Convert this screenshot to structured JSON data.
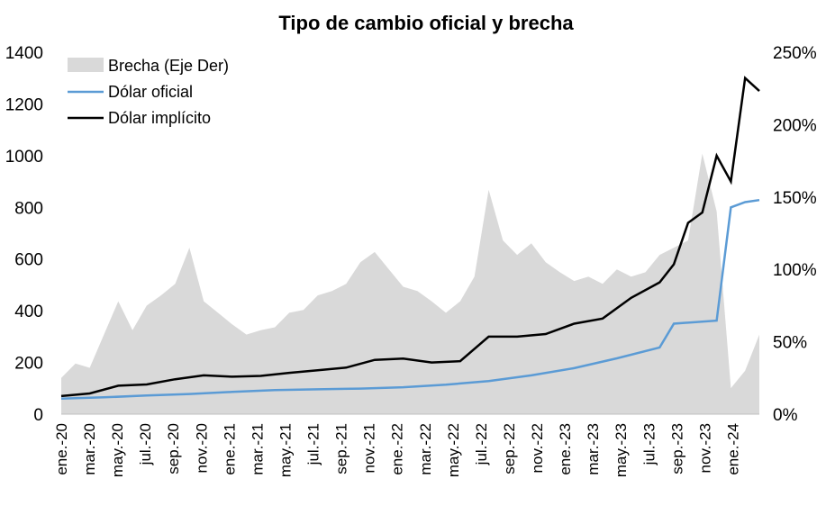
{
  "chart_data": {
    "type": "line",
    "title": "Tipo de cambio oficial y brecha",
    "y_left": {
      "min": 0,
      "max": 1400,
      "ticks": [
        "0",
        "200",
        "400",
        "600",
        "800",
        "1000",
        "1200",
        "1400"
      ]
    },
    "y_right": {
      "min": 0,
      "max": 250,
      "ticks": [
        "0%",
        "50%",
        "100%",
        "150%",
        "200%",
        "250%"
      ]
    },
    "x_labels": [
      "ene.-20",
      "mar.-20",
      "may.-20",
      "jul.-20",
      "sep.-20",
      "nov.-20",
      "ene.-21",
      "mar.-21",
      "may.-21",
      "jul.-21",
      "sep.-21",
      "nov.-21",
      "ene.-22",
      "mar.-22",
      "may.-22",
      "jul.-22",
      "sep.-22",
      "nov.-22",
      "ene.-23",
      "mar.-23",
      "may.-23",
      "jul.-23",
      "sep.-23",
      "nov.-23",
      "ene.-24"
    ],
    "x_start": "2020-01",
    "x_end": "2024-02",
    "legend": [
      "Brecha (Eje Der)",
      "Dólar oficial",
      "Dólar implícito"
    ],
    "colors": {
      "brecha": "#d9d9d9",
      "oficial": "#5b9bd5",
      "implicito": "#000000"
    },
    "series": [
      {
        "name": "Brecha (Eje Der)",
        "axis": "right",
        "kind": "area",
        "points": [
          [
            "2020-01",
            25
          ],
          [
            "2020-02",
            35
          ],
          [
            "2020-03",
            32
          ],
          [
            "2020-04",
            55
          ],
          [
            "2020-05",
            78
          ],
          [
            "2020-06",
            58
          ],
          [
            "2020-07",
            75
          ],
          [
            "2020-08",
            82
          ],
          [
            "2020-09",
            90
          ],
          [
            "2020-10",
            115
          ],
          [
            "2020-11",
            78
          ],
          [
            "2020-12",
            70
          ],
          [
            "2021-01",
            62
          ],
          [
            "2021-02",
            55
          ],
          [
            "2021-03",
            58
          ],
          [
            "2021-04",
            60
          ],
          [
            "2021-05",
            70
          ],
          [
            "2021-06",
            72
          ],
          [
            "2021-07",
            82
          ],
          [
            "2021-08",
            85
          ],
          [
            "2021-09",
            90
          ],
          [
            "2021-10",
            105
          ],
          [
            "2021-11",
            112
          ],
          [
            "2021-12",
            100
          ],
          [
            "2022-01",
            88
          ],
          [
            "2022-02",
            85
          ],
          [
            "2022-03",
            78
          ],
          [
            "2022-04",
            70
          ],
          [
            "2022-05",
            78
          ],
          [
            "2022-06",
            95
          ],
          [
            "2022-07",
            155
          ],
          [
            "2022-08",
            120
          ],
          [
            "2022-09",
            110
          ],
          [
            "2022-10",
            118
          ],
          [
            "2022-11",
            105
          ],
          [
            "2022-12",
            98
          ],
          [
            "2023-01",
            92
          ],
          [
            "2023-02",
            95
          ],
          [
            "2023-03",
            90
          ],
          [
            "2023-04",
            100
          ],
          [
            "2023-05",
            95
          ],
          [
            "2023-06",
            98
          ],
          [
            "2023-07",
            110
          ],
          [
            "2023-08",
            115
          ],
          [
            "2023-09",
            120
          ],
          [
            "2023-10",
            180
          ],
          [
            "2023-11",
            140
          ],
          [
            "2023-12",
            18
          ],
          [
            "2024-01",
            30
          ],
          [
            "2024-02",
            55
          ]
        ]
      },
      {
        "name": "Dólar oficial",
        "axis": "left",
        "kind": "line",
        "points": [
          [
            "2020-01",
            60
          ],
          [
            "2020-04",
            65
          ],
          [
            "2020-07",
            72
          ],
          [
            "2020-10",
            78
          ],
          [
            "2021-01",
            86
          ],
          [
            "2021-04",
            93
          ],
          [
            "2021-07",
            96
          ],
          [
            "2021-10",
            99
          ],
          [
            "2022-01",
            104
          ],
          [
            "2022-04",
            114
          ],
          [
            "2022-07",
            128
          ],
          [
            "2022-10",
            150
          ],
          [
            "2023-01",
            178
          ],
          [
            "2023-04",
            216
          ],
          [
            "2023-07",
            258
          ],
          [
            "2023-08",
            350
          ],
          [
            "2023-11",
            362
          ],
          [
            "2023-12",
            800
          ],
          [
            "2024-01",
            820
          ],
          [
            "2024-02",
            828
          ]
        ]
      },
      {
        "name": "Dólar implícito",
        "axis": "left",
        "kind": "line",
        "points": [
          [
            "2020-01",
            70
          ],
          [
            "2020-03",
            80
          ],
          [
            "2020-05",
            110
          ],
          [
            "2020-07",
            115
          ],
          [
            "2020-09",
            135
          ],
          [
            "2020-11",
            150
          ],
          [
            "2021-01",
            145
          ],
          [
            "2021-03",
            148
          ],
          [
            "2021-05",
            160
          ],
          [
            "2021-07",
            170
          ],
          [
            "2021-09",
            180
          ],
          [
            "2021-11",
            210
          ],
          [
            "2022-01",
            215
          ],
          [
            "2022-03",
            200
          ],
          [
            "2022-05",
            205
          ],
          [
            "2022-07",
            300
          ],
          [
            "2022-09",
            300
          ],
          [
            "2022-11",
            310
          ],
          [
            "2023-01",
            350
          ],
          [
            "2023-03",
            370
          ],
          [
            "2023-05",
            450
          ],
          [
            "2023-07",
            510
          ],
          [
            "2023-08",
            580
          ],
          [
            "2023-09",
            740
          ],
          [
            "2023-10",
            780
          ],
          [
            "2023-11",
            1000
          ],
          [
            "2023-12",
            900
          ],
          [
            "2024-01",
            1300
          ],
          [
            "2024-02",
            1250
          ]
        ]
      }
    ]
  }
}
